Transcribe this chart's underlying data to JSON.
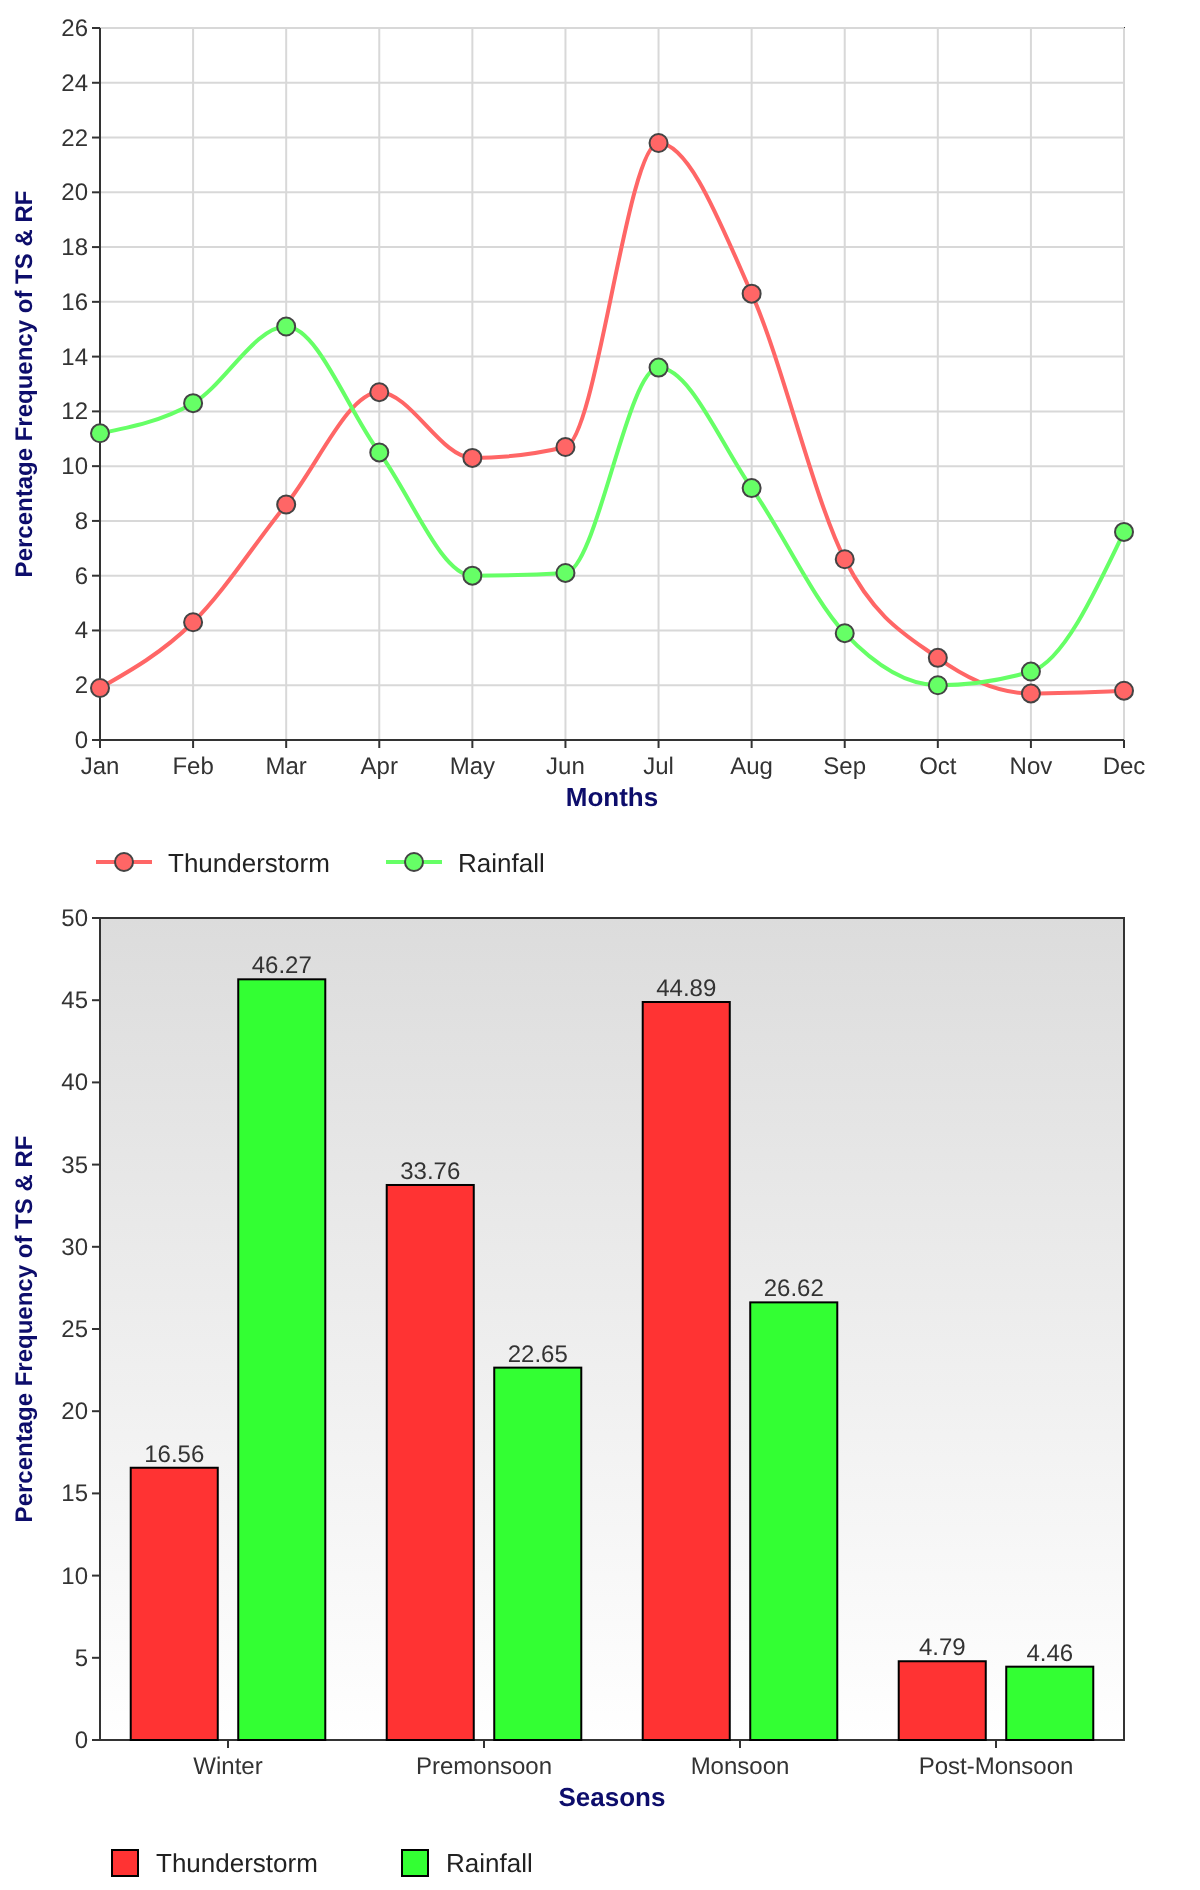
{
  "chart_data": [
    {
      "type": "line",
      "xlabel": "Months",
      "ylabel": "Percentage Frequency of TS & RF",
      "categories": [
        "Jan",
        "Feb",
        "Mar",
        "Apr",
        "May",
        "Jun",
        "Jul",
        "Aug",
        "Sep",
        "Oct",
        "Nov",
        "Dec"
      ],
      "series": [
        {
          "name": "Thunderstorm",
          "color": "#ff6666",
          "values": [
            1.9,
            4.3,
            8.6,
            12.7,
            10.3,
            10.7,
            21.8,
            16.3,
            6.6,
            3.0,
            1.7,
            1.8
          ]
        },
        {
          "name": "Rainfall",
          "color": "#66ff66",
          "values": [
            11.2,
            12.3,
            15.1,
            10.5,
            6.0,
            6.1,
            13.6,
            9.2,
            3.9,
            2.0,
            2.5,
            7.6
          ]
        }
      ],
      "ylim": [
        0,
        26
      ],
      "yticks": [
        0,
        2,
        4,
        6,
        8,
        10,
        12,
        14,
        16,
        18,
        20,
        22,
        24,
        26
      ],
      "grid": true,
      "legend": "bottom left",
      "marker": "circle"
    },
    {
      "type": "bar",
      "xlabel": "Seasons",
      "ylabel": "Percentage Frequency of TS & RF",
      "categories": [
        "Winter",
        "Premonsoon",
        "Monsoon",
        "Post-Monsoon"
      ],
      "series": [
        {
          "name": "Thunderstorm",
          "color": "#ff3333",
          "values": [
            16.56,
            33.76,
            44.89,
            4.79
          ]
        },
        {
          "name": "Rainfall",
          "color": "#33ff33",
          "values": [
            46.27,
            22.65,
            26.62,
            4.46
          ]
        }
      ],
      "ylim": [
        0,
        50
      ],
      "yticks": [
        0,
        5,
        10,
        15,
        20,
        25,
        30,
        35,
        40,
        45,
        50
      ],
      "data_labels": true,
      "legend": "bottom left",
      "grid": false
    }
  ]
}
